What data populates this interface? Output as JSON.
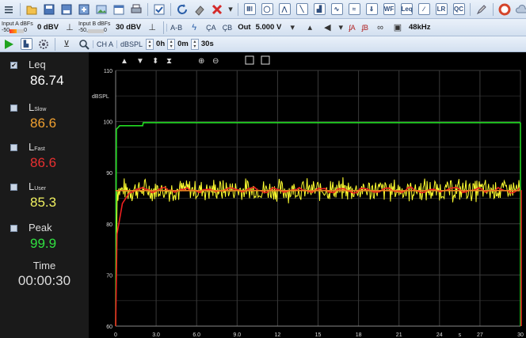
{
  "toolbar": {
    "input_a": "Input A",
    "dbfs_a": "dBFs",
    "input_a_min": "-50",
    "input_a_zero": "0",
    "input_a_level": "0 dBV",
    "input_b": "Input B",
    "dbfs_b": "dBFs",
    "input_b_min": "-50,",
    "input_b_zero": "0",
    "input_b_level": "30 dBV",
    "ab_label": "A-B",
    "cha": "ÇA",
    "chb": "ÇB",
    "out_label": "Out",
    "out_voltage": "5.000 V",
    "fa": "ʄA",
    "fb": "ʄB",
    "sample_rate": "48kHz",
    "channel": "CH A",
    "unit": "dBSPL",
    "time_hours": "0h",
    "time_minutes": "0m",
    "time_seconds": "30s",
    "wf_label": "WF",
    "leq_label": "Leq",
    "lr_label": "LR",
    "qc_label": "QC"
  },
  "readings": [
    {
      "label": "Leq",
      "sub": "",
      "value": "86.74",
      "color": "#ffffff",
      "checked": true
    },
    {
      "label": "L",
      "sub": "Slow",
      "value": "86.6",
      "color": "#f0a030",
      "checked": false
    },
    {
      "label": "L",
      "sub": "Fast",
      "value": "86.6",
      "color": "#e83030",
      "checked": false
    },
    {
      "label": "L",
      "sub": "User",
      "value": "85.3",
      "color": "#f0f060",
      "checked": false
    },
    {
      "label": "Peak",
      "sub": "",
      "value": "99.9",
      "color": "#30e040",
      "checked": false
    }
  ],
  "time": {
    "label": "Time",
    "value": "00:00:30"
  },
  "chart_data": {
    "type": "line",
    "ylabel": "dBSPL",
    "ylim": [
      60,
      110
    ],
    "xlim": [
      0,
      30
    ],
    "yticks": [
      "110",
      "100",
      "90",
      "80",
      "70",
      "60"
    ],
    "xticks": [
      "0",
      "3.0",
      "6.0",
      "9.0",
      "12",
      "15",
      "18",
      "21",
      "24",
      "s",
      "27",
      "30"
    ],
    "series": [
      {
        "key": "peak",
        "color": "#22dd22",
        "x": [
          0,
          0.05,
          0.3,
          2,
          2.05,
          30
        ],
        "y": [
          60,
          98.5,
          99.2,
          99.2,
          99.8,
          99.8
        ]
      },
      {
        "key": "lfast",
        "color": "#ffff30",
        "x": [
          0,
          30
        ],
        "y": [
          86.6,
          86.6
        ],
        "noise": 2.4
      },
      {
        "key": "lslow",
        "color": "#ee2020",
        "x": [
          0,
          0.1,
          0.5,
          1.0,
          1.5,
          30
        ],
        "y": [
          60,
          78,
          84,
          86,
          86.5,
          86.6
        ]
      },
      {
        "key": "lequser",
        "color": "#e88020",
        "x": [
          0,
          30
        ],
        "y": [
          86.5,
          86.5
        ]
      }
    ]
  }
}
